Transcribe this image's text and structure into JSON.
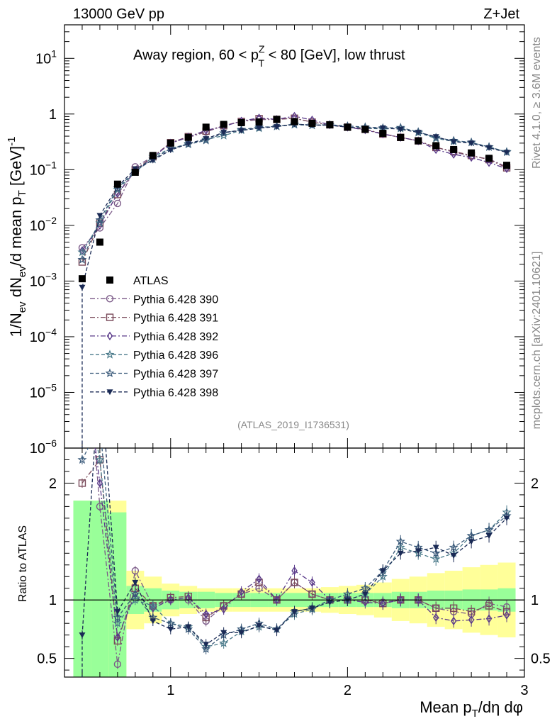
{
  "header": {
    "left": "13000 GeV pp",
    "right": "Z+Jet"
  },
  "side_texts": {
    "rivet": "Rivet 4.1.0, ≥ 3.6M events",
    "mcplots": "mcplots.cern.ch [arXiv:2401.10621]"
  },
  "colors": {
    "data": "#000000",
    "p390": "#7b5a88",
    "p391": "#7a4a5a",
    "p392": "#5a3a8a",
    "p396": "#4a7a8a",
    "p397": "#3a5a7a",
    "p398": "#1a2a55",
    "band_inner": "#99ff99",
    "band_outer": "#ffff99"
  },
  "chart_data": {
    "type": "line",
    "title": "Away region, 60 < p_T^Z < 80 [GeV], low thrust",
    "title_parts": {
      "pre": "Away region, 60 < p",
      "sup": "Z",
      "sub": "T",
      "post": " < 80 [GeV], low thrust"
    },
    "analysis_tag": "(ATLAS_2019_I1736531)",
    "xlabel": "Mean p_T/dη dφ",
    "xlabel_parts": {
      "pre": "Mean p",
      "sub": "T",
      "post": "/dη dφ"
    },
    "ylabel": "1/N_ev dN_ev/d mean p_T [GeV]^-1",
    "ylabel_parts": {
      "a": "1/N",
      "b": "ev",
      "c": " dN",
      "d": "ev",
      "e": "/d mean p",
      "f": "T",
      "g": " [GeV]",
      "h": "-1"
    },
    "ratio_ylabel": "Ratio to ATLAS",
    "xlim": [
      0.4,
      3.0
    ],
    "ylim_main": [
      1e-06,
      40
    ],
    "ylim_ratio": [
      0.34,
      2.3
    ],
    "x_ticks": [
      1,
      2,
      3
    ],
    "x_tick_labels": [
      "1",
      "2",
      "3"
    ],
    "y_main_ticks": [
      {
        "base": "10",
        "exp": "1",
        "value": 10
      },
      {
        "base": "1",
        "exp": "",
        "value": 1
      },
      {
        "base": "10",
        "exp": "−1",
        "value": 0.1
      },
      {
        "base": "10",
        "exp": "−2",
        "value": 0.01
      },
      {
        "base": "10",
        "exp": "−3",
        "value": 0.001
      },
      {
        "base": "10",
        "exp": "−4",
        "value": 0.0001
      },
      {
        "base": "10",
        "exp": "−5",
        "value": 1e-05
      },
      {
        "base": "10",
        "exp": "−6",
        "value": 1e-06
      }
    ],
    "y_ratio_ticks": [
      {
        "label": "2",
        "value": 2
      },
      {
        "label": "1",
        "value": 1
      },
      {
        "label": "0.5",
        "value": 0.5
      }
    ],
    "x": [
      0.5,
      0.6,
      0.7,
      0.8,
      0.9,
      1.0,
      1.1,
      1.2,
      1.3,
      1.4,
      1.5,
      1.6,
      1.7,
      1.8,
      1.9,
      2.0,
      2.1,
      2.2,
      2.3,
      2.4,
      2.5,
      2.6,
      2.7,
      2.8,
      2.9
    ],
    "data_values": [
      0.0011,
      0.005,
      0.055,
      0.09,
      0.18,
      0.3,
      0.38,
      0.58,
      0.65,
      0.7,
      0.72,
      0.8,
      0.73,
      0.68,
      0.64,
      0.58,
      0.53,
      0.45,
      0.38,
      0.33,
      0.27,
      0.23,
      0.2,
      0.16,
      0.12
    ],
    "band_inner": [
      0.85,
      0.85,
      0.75,
      0.12,
      0.1,
      0.08,
      0.07,
      0.07,
      0.06,
      0.06,
      0.06,
      0.06,
      0.06,
      0.06,
      0.06,
      0.06,
      0.06,
      0.06,
      0.07,
      0.07,
      0.08,
      0.08,
      0.09,
      0.09,
      0.1
    ],
    "band_outer": [
      0.85,
      0.85,
      0.85,
      0.25,
      0.2,
      0.14,
      0.12,
      0.1,
      0.1,
      0.1,
      0.1,
      0.1,
      0.1,
      0.1,
      0.11,
      0.12,
      0.13,
      0.15,
      0.18,
      0.2,
      0.23,
      0.25,
      0.28,
      0.3,
      0.32
    ],
    "ratio_floor_value": 0.34,
    "series": [
      {
        "name": "Pythia 6.428 390",
        "color_key": "p390",
        "marker": "circle",
        "dash": "dashdot",
        "ratio": [
          3.6,
          1.8,
          0.45,
          1.25,
          0.95,
          1.0,
          1.0,
          0.82,
          0.95,
          1.05,
          1.1,
          1.0,
          1.15,
          1.05,
          1.0,
          1.0,
          1.0,
          0.98,
          1.0,
          1.0,
          0.93,
          0.9,
          0.88,
          0.97,
          0.94
        ]
      },
      {
        "name": "Pythia 6.428 391",
        "color_key": "p391",
        "marker": "square",
        "dash": "dashdot",
        "ratio": [
          2.0,
          2.2,
          0.65,
          1.1,
          0.95,
          1.02,
          1.03,
          0.85,
          0.95,
          1.05,
          1.15,
          1.0,
          1.15,
          1.05,
          1.0,
          1.0,
          1.0,
          0.97,
          1.0,
          1.0,
          0.93,
          0.93,
          0.9,
          0.95,
          0.9
        ]
      },
      {
        "name": "Pythia 6.428 392",
        "color_key": "p392",
        "marker": "diamond",
        "dash": "dashdot",
        "ratio": [
          3.2,
          2.0,
          0.68,
          1.05,
          0.93,
          1.0,
          1.02,
          0.88,
          0.92,
          1.07,
          1.18,
          1.0,
          1.25,
          1.15,
          1.0,
          1.0,
          0.98,
          0.97,
          1.0,
          1.0,
          0.85,
          0.82,
          0.83,
          0.84,
          0.87
        ]
      },
      {
        "name": "Pythia 6.428 396",
        "color_key": "p396",
        "marker": "star",
        "dash": "dashed",
        "ratio": [
          3.0,
          2.2,
          0.8,
          1.0,
          0.95,
          0.8,
          0.77,
          0.6,
          0.63,
          0.73,
          0.77,
          0.75,
          0.88,
          0.92,
          1.0,
          1.0,
          1.05,
          1.2,
          1.45,
          1.4,
          1.35,
          1.4,
          1.55,
          1.6,
          1.75
        ]
      },
      {
        "name": "Pythia 6.428 397",
        "color_key": "p397",
        "marker": "star",
        "dash": "dashed",
        "ratio": [
          2.2,
          2.5,
          0.85,
          1.05,
          0.85,
          0.8,
          0.75,
          0.58,
          0.7,
          0.75,
          0.8,
          0.75,
          0.9,
          0.93,
          1.0,
          1.05,
          1.1,
          1.25,
          1.5,
          1.45,
          1.4,
          1.45,
          1.55,
          1.6,
          1.72
        ]
      },
      {
        "name": "Pythia 6.428 398",
        "color_key": "p398",
        "marker": "triangle-down",
        "dash": "dashed",
        "ratio": [
          0.7,
          3.0,
          0.9,
          1.15,
          0.82,
          0.75,
          0.77,
          0.62,
          0.72,
          0.72,
          0.78,
          0.74,
          0.9,
          0.93,
          0.98,
          1.0,
          1.05,
          1.25,
          1.4,
          1.42,
          1.45,
          1.38,
          1.5,
          1.55,
          1.7
        ]
      }
    ]
  }
}
